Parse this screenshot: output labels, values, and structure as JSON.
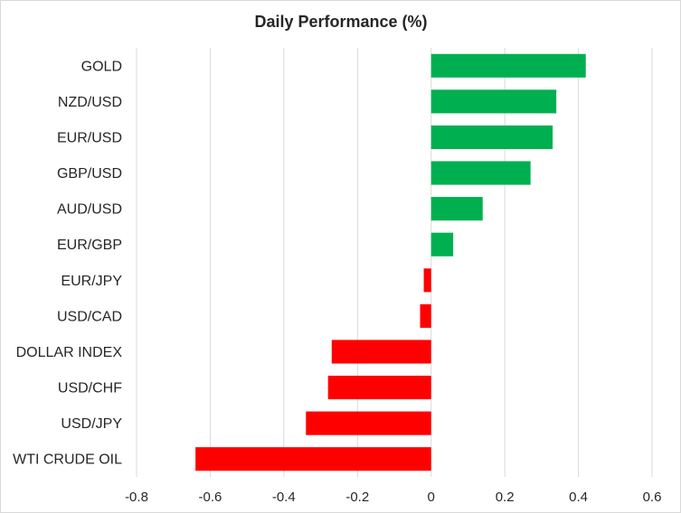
{
  "chart_data": {
    "type": "bar",
    "orientation": "horizontal",
    "title": "Daily Performance (%)",
    "xlabel": "",
    "ylabel": "",
    "categories": [
      "GOLD",
      "NZD/USD",
      "EUR/USD",
      "GBP/USD",
      "AUD/USD",
      "EUR/GBP",
      "EUR/JPY",
      "USD/CAD",
      "DOLLAR INDEX",
      "USD/CHF",
      "USD/JPY",
      "WTI CRUDE OIL"
    ],
    "values": [
      0.42,
      0.34,
      0.33,
      0.27,
      0.14,
      0.06,
      -0.02,
      -0.03,
      -0.27,
      -0.28,
      -0.34,
      -0.64
    ],
    "xlim": [
      -0.8,
      0.6
    ],
    "xticks": [
      -0.8,
      -0.6,
      -0.4,
      -0.2,
      0,
      0.2,
      0.4,
      0.6
    ],
    "xtick_labels": [
      "-0.8",
      "-0.6",
      "-0.4",
      "-0.2",
      "0",
      "0.2",
      "0.4",
      "0.6"
    ],
    "grid": true,
    "legend": "none",
    "colors": {
      "positive": "#00b050",
      "negative": "#ff0000",
      "grid": "#d9d9d9",
      "text": "#262626"
    }
  }
}
